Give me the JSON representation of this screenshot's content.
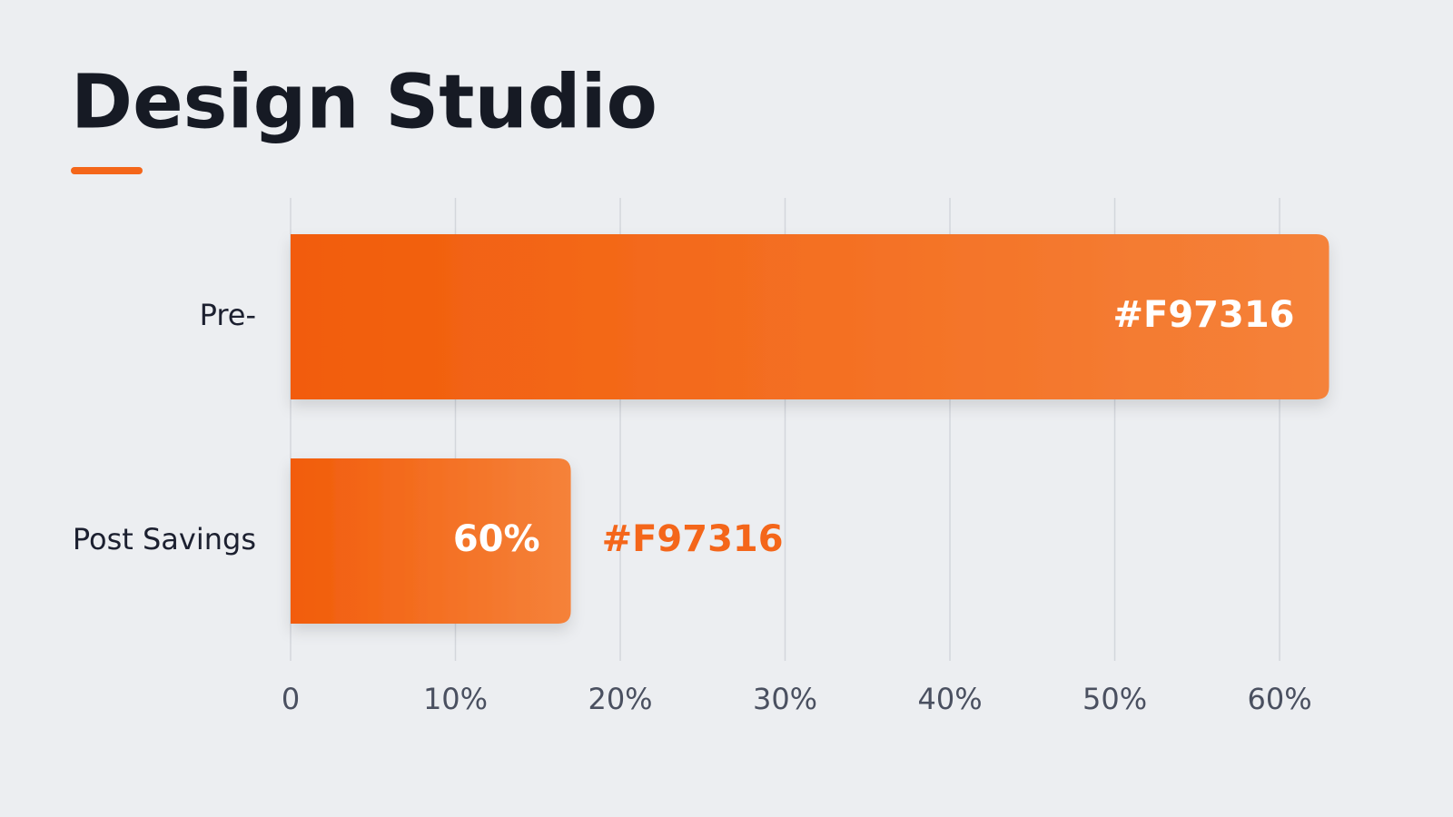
{
  "chart_data": {
    "type": "bar",
    "orientation": "horizontal",
    "title": "Design Studio",
    "categories": [
      "Pre-",
      "Post Savings"
    ],
    "values": [
      63,
      17
    ],
    "color": "#f4661a",
    "annotations": [
      "#F97316",
      "60%",
      "#F97316"
    ],
    "xlim": [
      0,
      63
    ],
    "xticks": [
      0,
      {
        "value": 10,
        "label": "10%"
      },
      {
        "value": 20,
        "label": "20%"
      },
      {
        "value": 30,
        "label": "30%"
      },
      {
        "value": 40,
        "label": "40%"
      },
      {
        "value": 50,
        "label": "50%"
      },
      {
        "value": 60,
        "label": "60%"
      }
    ],
    "grid": true
  }
}
